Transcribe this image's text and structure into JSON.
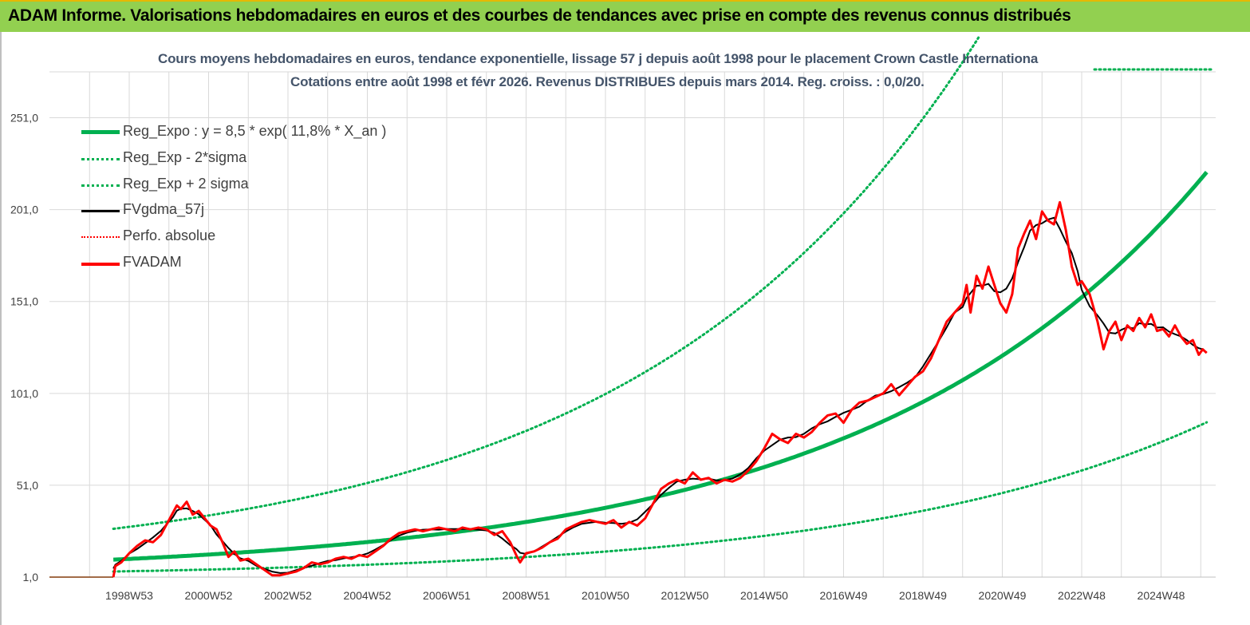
{
  "banner": {
    "title": "ADAM Informe. Valorisations hebdomadaires en euros et des courbes de tendances avec prise en compte des revenus connus distribués"
  },
  "colors": {
    "banner_bg": "#92d050",
    "reg_green": "#00b050",
    "fvadam_red": "#ff0000",
    "fvgdma_black": "#000000",
    "grid": "#d9d9d9"
  },
  "chart_data": {
    "type": "line",
    "title_line1": "Cours moyens hebdomadaires en euros, tendance exponentielle, lissage 57 j depuis août 1998 pour le placement Crown Castle Internationa",
    "title_line2": "Cotations entre août 1998 et févr 2026. Revenus DISTRIBUES depuis mars 2014. Reg. croiss. : 0,0/20.",
    "ylim": [
      1,
      276
    ],
    "y_ticks": [
      "1,0",
      "51,0",
      "101,0",
      "151,0",
      "201,0",
      "251,0"
    ],
    "y_tick_values": [
      1,
      51,
      101,
      151,
      201,
      251
    ],
    "x_tick_labels": [
      "1998W53",
      "2000W52",
      "2002W52",
      "2004W52",
      "2006W51",
      "2008W51",
      "2010W50",
      "2012W50",
      "2014W50",
      "2016W49",
      "2018W49",
      "2020W49",
      "2022W48",
      "2024W48"
    ],
    "x_tick_years": [
      1999.0,
      2001.0,
      2003.0,
      2005.0,
      2007.0,
      2009.0,
      2011.0,
      2013.0,
      2015.0,
      2017.0,
      2019.0,
      2021.0,
      2023.0,
      2025.0
    ],
    "x_range_years": [
      1998.6,
      2026.15
    ],
    "grid": true,
    "legend_position": "top-left",
    "legend": [
      {
        "key": "reg_expo",
        "label": "Reg_Expo : y = 8,5 * exp( 11,8% *  X_an )",
        "color": "#00b050",
        "style": "solid-thick"
      },
      {
        "key": "reg_minus",
        "label": "Reg_Exp - 2*sigma",
        "color": "#00b050",
        "style": "dotted"
      },
      {
        "key": "reg_plus",
        "label": "Reg_Exp + 2 sigma",
        "color": "#00b050",
        "style": "dotted"
      },
      {
        "key": "fvgdma",
        "label": "FVgdma_57j",
        "color": "#000000",
        "style": "solid"
      },
      {
        "key": "perfo",
        "label": "Perfo. absolue",
        "color": "#ff0000",
        "style": "dotted"
      },
      {
        "key": "fvadam",
        "label": "FVADAM",
        "color": "#ff0000",
        "style": "solid-thick"
      }
    ],
    "regression": {
      "a": 8.5,
      "rate": 0.118,
      "sigma_factor_plus": 2.6,
      "sigma_factor_minus": 0.385
    },
    "series": [
      {
        "name": "FVADAM",
        "points": [
          [
            1998.6,
            1
          ],
          [
            1998.65,
            7
          ],
          [
            1998.8,
            9
          ],
          [
            1999.0,
            14
          ],
          [
            1999.2,
            18
          ],
          [
            1999.4,
            21
          ],
          [
            1999.6,
            20
          ],
          [
            1999.8,
            24
          ],
          [
            1999.95,
            30
          ],
          [
            2000.1,
            36
          ],
          [
            2000.2,
            40
          ],
          [
            2000.3,
            38
          ],
          [
            2000.45,
            42
          ],
          [
            2000.6,
            35
          ],
          [
            2000.75,
            37
          ],
          [
            2000.9,
            33
          ],
          [
            2001.05,
            29
          ],
          [
            2001.2,
            27
          ],
          [
            2001.35,
            20
          ],
          [
            2001.5,
            12
          ],
          [
            2001.65,
            15
          ],
          [
            2001.8,
            10
          ],
          [
            2002.0,
            11
          ],
          [
            2002.2,
            8
          ],
          [
            2002.4,
            5
          ],
          [
            2002.6,
            2
          ],
          [
            2002.8,
            2
          ],
          [
            2003.0,
            3
          ],
          [
            2003.2,
            4
          ],
          [
            2003.4,
            6
          ],
          [
            2003.6,
            9
          ],
          [
            2003.8,
            8
          ],
          [
            2004.0,
            9
          ],
          [
            2004.2,
            11
          ],
          [
            2004.4,
            12
          ],
          [
            2004.6,
            11
          ],
          [
            2004.8,
            13
          ],
          [
            2005.0,
            12
          ],
          [
            2005.2,
            15
          ],
          [
            2005.4,
            18
          ],
          [
            2005.6,
            22
          ],
          [
            2005.8,
            25
          ],
          [
            2006.0,
            26
          ],
          [
            2006.2,
            27
          ],
          [
            2006.4,
            26
          ],
          [
            2006.6,
            27
          ],
          [
            2006.8,
            28
          ],
          [
            2007.0,
            27
          ],
          [
            2007.2,
            26
          ],
          [
            2007.4,
            28
          ],
          [
            2007.6,
            27
          ],
          [
            2007.8,
            28
          ],
          [
            2008.0,
            27
          ],
          [
            2008.2,
            24
          ],
          [
            2008.4,
            26
          ],
          [
            2008.6,
            20
          ],
          [
            2008.75,
            13
          ],
          [
            2008.85,
            9
          ],
          [
            2009.0,
            14
          ],
          [
            2009.2,
            15
          ],
          [
            2009.4,
            17
          ],
          [
            2009.6,
            20
          ],
          [
            2009.8,
            22
          ],
          [
            2010.0,
            27
          ],
          [
            2010.2,
            29
          ],
          [
            2010.4,
            31
          ],
          [
            2010.6,
            32
          ],
          [
            2010.8,
            31
          ],
          [
            2011.0,
            30
          ],
          [
            2011.2,
            32
          ],
          [
            2011.4,
            28
          ],
          [
            2011.6,
            31
          ],
          [
            2011.8,
            29
          ],
          [
            2012.0,
            33
          ],
          [
            2012.2,
            41
          ],
          [
            2012.4,
            49
          ],
          [
            2012.6,
            52
          ],
          [
            2012.8,
            54
          ],
          [
            2013.0,
            52
          ],
          [
            2013.2,
            58
          ],
          [
            2013.4,
            54
          ],
          [
            2013.6,
            55
          ],
          [
            2013.8,
            52
          ],
          [
            2014.0,
            54
          ],
          [
            2014.2,
            53
          ],
          [
            2014.4,
            55
          ],
          [
            2014.6,
            59
          ],
          [
            2014.8,
            64
          ],
          [
            2015.0,
            71
          ],
          [
            2015.2,
            79
          ],
          [
            2015.4,
            76
          ],
          [
            2015.6,
            74
          ],
          [
            2015.8,
            79
          ],
          [
            2016.0,
            77
          ],
          [
            2016.2,
            80
          ],
          [
            2016.4,
            85
          ],
          [
            2016.6,
            89
          ],
          [
            2016.8,
            90
          ],
          [
            2017.0,
            85
          ],
          [
            2017.2,
            92
          ],
          [
            2017.4,
            96
          ],
          [
            2017.6,
            97
          ],
          [
            2017.8,
            99
          ],
          [
            2018.0,
            101
          ],
          [
            2018.2,
            106
          ],
          [
            2018.4,
            100
          ],
          [
            2018.6,
            105
          ],
          [
            2018.8,
            110
          ],
          [
            2019.0,
            113
          ],
          [
            2019.2,
            120
          ],
          [
            2019.4,
            130
          ],
          [
            2019.6,
            140
          ],
          [
            2019.8,
            145
          ],
          [
            2020.0,
            150
          ],
          [
            2020.1,
            160
          ],
          [
            2020.2,
            145
          ],
          [
            2020.35,
            165
          ],
          [
            2020.5,
            158
          ],
          [
            2020.65,
            170
          ],
          [
            2020.8,
            160
          ],
          [
            2020.95,
            150
          ],
          [
            2021.1,
            145
          ],
          [
            2021.25,
            155
          ],
          [
            2021.4,
            180
          ],
          [
            2021.55,
            188
          ],
          [
            2021.7,
            195
          ],
          [
            2021.85,
            185
          ],
          [
            2022.0,
            200
          ],
          [
            2022.15,
            195
          ],
          [
            2022.3,
            193
          ],
          [
            2022.45,
            205
          ],
          [
            2022.6,
            190
          ],
          [
            2022.75,
            170
          ],
          [
            2022.9,
            160
          ],
          [
            2023.0,
            162
          ],
          [
            2023.2,
            155
          ],
          [
            2023.4,
            140
          ],
          [
            2023.55,
            125
          ],
          [
            2023.7,
            135
          ],
          [
            2023.85,
            140
          ],
          [
            2024.0,
            130
          ],
          [
            2024.15,
            138
          ],
          [
            2024.3,
            135
          ],
          [
            2024.45,
            142
          ],
          [
            2024.6,
            137
          ],
          [
            2024.75,
            144
          ],
          [
            2024.9,
            135
          ],
          [
            2025.05,
            136
          ],
          [
            2025.2,
            132
          ],
          [
            2025.35,
            138
          ],
          [
            2025.5,
            132
          ],
          [
            2025.65,
            128
          ],
          [
            2025.8,
            130
          ],
          [
            2025.95,
            122
          ],
          [
            2026.05,
            125
          ],
          [
            2026.15,
            123
          ]
        ]
      }
    ]
  }
}
